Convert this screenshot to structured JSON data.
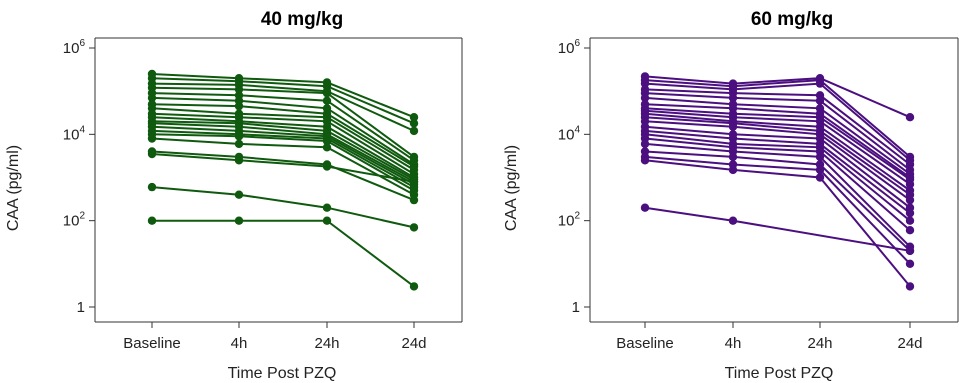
{
  "chart_data": [
    {
      "type": "line",
      "title": "40 mg/kg",
      "xlabel": "Time Post PZQ",
      "ylabel": "CAA (pg/ml)",
      "categories": [
        "Baseline",
        "4h",
        "24h",
        "24d"
      ],
      "y_scale": "log10",
      "ylim": [
        1,
        1000000
      ],
      "yticks": [
        {
          "value": 1,
          "base": "1",
          "exp": ""
        },
        {
          "value": 100,
          "base": "10",
          "exp": "2"
        },
        {
          "value": 10000,
          "base": "10",
          "exp": "4"
        },
        {
          "value": 1000000,
          "base": "10",
          "exp": "6"
        }
      ],
      "color": "#0f5a0f",
      "series": [
        {
          "values": [
            250000,
            200000,
            160000,
            25000
          ]
        },
        {
          "values": [
            200000,
            170000,
            130000,
            18000
          ]
        },
        {
          "values": [
            150000,
            140000,
            100000,
            12000
          ]
        },
        {
          "values": [
            120000,
            110000,
            90000,
            3000
          ]
        },
        {
          "values": [
            90000,
            80000,
            60000,
            2500
          ]
        },
        {
          "values": [
            70000,
            60000,
            40000,
            2000
          ]
        },
        {
          "values": [
            50000,
            45000,
            30000,
            1800
          ]
        },
        {
          "values": [
            40000,
            30000,
            25000,
            1500
          ]
        },
        {
          "values": [
            30000,
            25000,
            20000,
            1200
          ]
        },
        {
          "values": [
            25000,
            20000,
            15000,
            1000
          ]
        },
        {
          "values": [
            20000,
            18000,
            12000,
            900
          ]
        },
        {
          "values": [
            18000,
            15000,
            10000,
            800
          ]
        },
        {
          "values": [
            15000,
            12000,
            9000,
            700
          ]
        },
        {
          "values": [
            12000,
            10000,
            8000,
            600
          ]
        },
        {
          "values": [
            10000,
            9000,
            7000,
            500
          ]
        },
        {
          "values": [
            8000,
            6000,
            5000,
            400
          ]
        },
        {
          "values": [
            4000,
            3000,
            2000,
            300
          ]
        },
        {
          "values": [
            3500,
            2500,
            1800,
            800
          ]
        },
        {
          "values": [
            600,
            400,
            200,
            70
          ]
        },
        {
          "values": [
            100,
            100,
            100,
            3
          ]
        }
      ]
    },
    {
      "type": "line",
      "title": "60 mg/kg",
      "xlabel": "Time Post PZQ",
      "ylabel": "CAA (pg/ml)",
      "categories": [
        "Baseline",
        "4h",
        "24h",
        "24d"
      ],
      "y_scale": "log10",
      "ylim": [
        1,
        1000000
      ],
      "yticks": [
        {
          "value": 1,
          "base": "1",
          "exp": ""
        },
        {
          "value": 100,
          "base": "10",
          "exp": "2"
        },
        {
          "value": 10000,
          "base": "10",
          "exp": "4"
        },
        {
          "value": 1000000,
          "base": "10",
          "exp": "6"
        }
      ],
      "color": "#4b0f80",
      "series": [
        {
          "values": [
            220000,
            150000,
            200000,
            25000
          ]
        },
        {
          "values": [
            180000,
            130000,
            180000,
            3000
          ]
        },
        {
          "values": [
            150000,
            110000,
            150000,
            2500
          ]
        },
        {
          "values": [
            110000,
            90000,
            80000,
            2000
          ]
        },
        {
          "values": [
            90000,
            70000,
            60000,
            1500
          ]
        },
        {
          "values": [
            70000,
            50000,
            40000,
            1200
          ]
        },
        {
          "values": [
            50000,
            40000,
            30000,
            1000
          ]
        },
        {
          "values": [
            40000,
            30000,
            25000,
            900
          ]
        },
        {
          "values": [
            35000,
            25000,
            20000,
            700
          ]
        },
        {
          "values": [
            30000,
            20000,
            15000,
            500
          ]
        },
        {
          "values": [
            25000,
            18000,
            12000,
            400
          ]
        },
        {
          "values": [
            20000,
            15000,
            10000,
            300
          ]
        },
        {
          "values": [
            15000,
            10000,
            8000,
            200
          ]
        },
        {
          "values": [
            12000,
            8000,
            6000,
            150
          ]
        },
        {
          "values": [
            10000,
            6000,
            5000,
            100
          ]
        },
        {
          "values": [
            8000,
            5000,
            4000,
            60
          ]
        },
        {
          "values": [
            6000,
            4000,
            3000,
            25
          ]
        },
        {
          "values": [
            4000,
            3000,
            2000,
            20
          ]
        },
        {
          "values": [
            3000,
            2000,
            1500,
            10
          ]
        },
        {
          "values": [
            2500,
            1500,
            1000,
            3
          ]
        },
        {
          "values": [
            200,
            100,
            null,
            20
          ]
        }
      ]
    }
  ]
}
